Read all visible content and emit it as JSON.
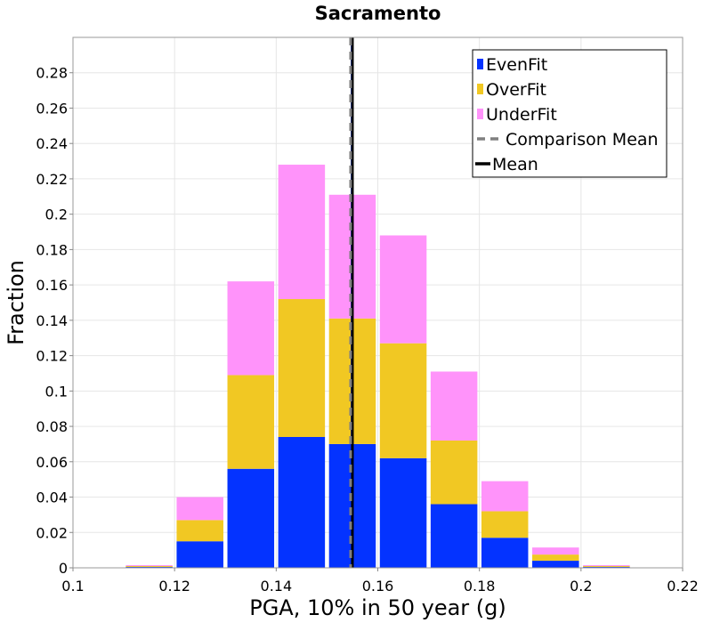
{
  "chart_data": {
    "type": "bar",
    "stacked": true,
    "title": "Sacramento",
    "xlabel": "PGA, 10% in 50 year (g)",
    "ylabel": "Fraction",
    "xlim": [
      0.1,
      0.22
    ],
    "ylim": [
      0,
      0.3
    ],
    "xticks": [
      "0.1",
      "0.12",
      "0.14",
      "0.16",
      "0.18",
      "0.2",
      "0.22"
    ],
    "yticks": [
      "0",
      "0.02",
      "0.04",
      "0.06",
      "0.08",
      "0.1",
      "0.12",
      "0.14",
      "0.16",
      "0.18",
      "0.2",
      "0.22",
      "0.24",
      "0.26",
      "0.28"
    ],
    "bin_width": 0.01,
    "bin_centers": [
      0.115,
      0.125,
      0.135,
      0.145,
      0.155,
      0.165,
      0.175,
      0.185,
      0.195,
      0.205
    ],
    "series": [
      {
        "name": "EvenFit",
        "color": "#0433ff",
        "values": [
          0.0005,
          0.015,
          0.056,
          0.074,
          0.07,
          0.062,
          0.036,
          0.017,
          0.004,
          0.0005
        ]
      },
      {
        "name": "OverFit",
        "color": "#f1c823",
        "values": [
          0.0005,
          0.012,
          0.053,
          0.078,
          0.071,
          0.065,
          0.036,
          0.015,
          0.0035,
          0.0005
        ]
      },
      {
        "name": "UnderFit",
        "color": "#ff93fa",
        "values": [
          0.0005,
          0.013,
          0.053,
          0.076,
          0.07,
          0.061,
          0.039,
          0.017,
          0.004,
          0.0005
        ]
      }
    ],
    "lines": [
      {
        "name": "Comparison Mean",
        "x": 0.155,
        "color": "#808080",
        "style": "dashed"
      },
      {
        "name": "Mean",
        "x": 0.155,
        "color": "#000000",
        "style": "solid"
      }
    ],
    "grid": true,
    "legend_position": "top-right"
  }
}
